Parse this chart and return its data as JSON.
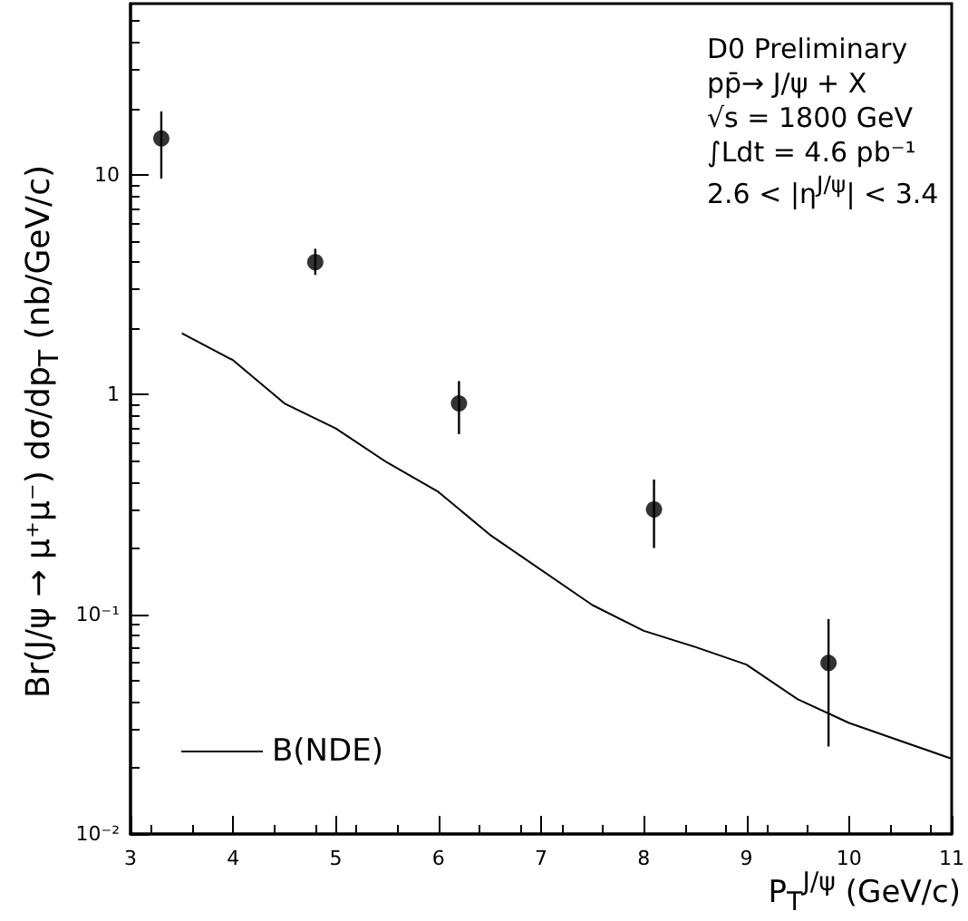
{
  "chart_data": {
    "type": "scatter",
    "xlabel": "P$_{T}$$^{J/ψ}$ (GeV/c)",
    "ylabel": "Br(J/ψ → μ⁺μ⁻) dσ/dp$_{T}$ (nb/GeV/c)",
    "annotations": [
      "D0 Preliminary",
      "pp̄→ J/ψ + X",
      "√s = 1800 GeV",
      "∫Ldt = 4.6 pb⁻¹",
      "2.6 < |η$^{J/ψ}$| < 3.4"
    ],
    "x": [
      3.3,
      4.8,
      6.2,
      8.1,
      9.8
    ],
    "series": [
      {
        "color": "#000000",
        "marker": "circle",
        "values": [
          14.6,
          4.0,
          0.91,
          0.3,
          0.06
        ],
        "errors": [
          [
            9.6,
            19.4
          ],
          [
            3.5,
            4.6
          ],
          [
            0.66,
            1.15
          ],
          [
            0.2,
            0.41
          ],
          [
            0.025,
            0.095
          ]
        ]
      },
      {
        "type": "line",
        "name": "B(NDE)",
        "color": "#000000",
        "marker": "none",
        "x": [
          3.5,
          4.0,
          4.5,
          5.0,
          5.5,
          6.0,
          6.5,
          7.5,
          8.0,
          8.5,
          9.0,
          9.5,
          10.0,
          11.0
        ],
        "values": [
          1.9,
          1.43,
          0.91,
          0.7,
          0.49,
          0.36,
          0.23,
          0.11,
          0.084,
          0.071,
          0.059,
          0.041,
          0.032,
          0.022
        ]
      }
    ],
    "xlim": [
      3,
      11
    ],
    "xticks": [
      3,
      4,
      5,
      6,
      7,
      8,
      9,
      10,
      11
    ],
    "ylim": [
      0.01,
      60
    ],
    "yticks": [
      {
        "value": 0.01,
        "label": "10⁻²"
      },
      {
        "value": 0.1,
        "label": "10⁻¹"
      },
      1,
      10
    ],
    "log": true,
    "grid": false,
    "legend": "bottom left"
  }
}
